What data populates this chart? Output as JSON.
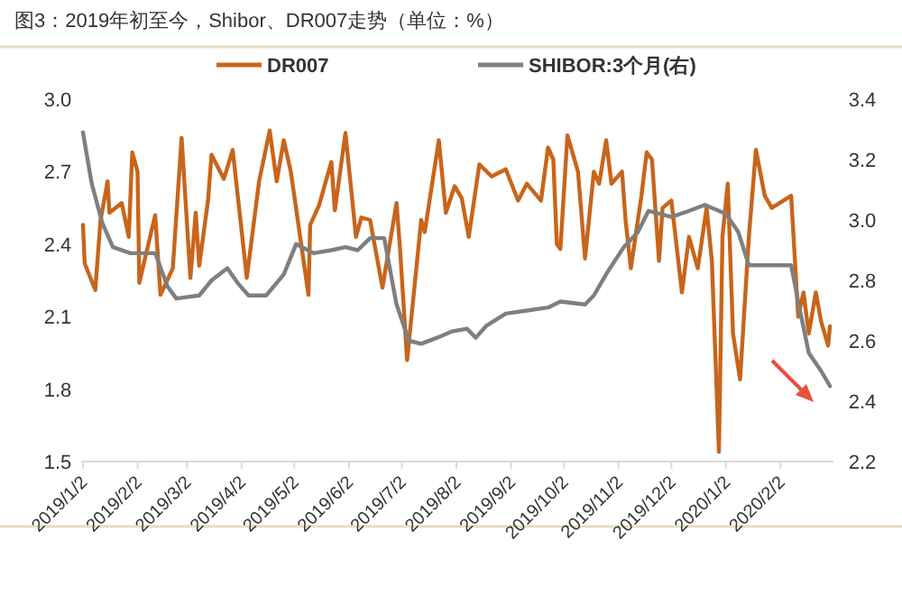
{
  "chart_data": {
    "type": "line",
    "title": "图3：2019年初至今，Shibor、DR007走势（单位：%）",
    "legend": "top",
    "grid": false,
    "line_style": "solid",
    "xlim": [
      "2019-01-01",
      "2020-03-03"
    ],
    "xticks": [
      {
        "value": "2019-01-02",
        "label": "2019/1/2"
      },
      {
        "value": "2019-02-02",
        "label": "2019/2/2"
      },
      {
        "value": "2019-03-02",
        "label": "2019/3/2"
      },
      {
        "value": "2019-04-02",
        "label": "2019/4/2"
      },
      {
        "value": "2019-05-02",
        "label": "2019/5/2"
      },
      {
        "value": "2019-06-02",
        "label": "2019/6/2"
      },
      {
        "value": "2019-07-02",
        "label": "2019/7/2"
      },
      {
        "value": "2019-08-02",
        "label": "2019/8/2"
      },
      {
        "value": "2019-09-02",
        "label": "2019/9/2"
      },
      {
        "value": "2019-10-02",
        "label": "2019/10/2"
      },
      {
        "value": "2019-11-02",
        "label": "2019/11/2"
      },
      {
        "value": "2019-12-02",
        "label": "2019/12/2"
      },
      {
        "value": "2020-01-02",
        "label": "2020/1/2"
      },
      {
        "value": "2020-02-02",
        "label": "2020/2/2"
      }
    ],
    "ylim": [
      1.5,
      3.0
    ],
    "yticks": [
      {
        "value": 1.5,
        "label": "1.5"
      },
      {
        "value": 1.8,
        "label": "1.8"
      },
      {
        "value": 2.1,
        "label": "2.1"
      },
      {
        "value": 2.4,
        "label": "2.4"
      },
      {
        "value": 2.7,
        "label": "2.7"
      },
      {
        "value": 3.0,
        "label": "3.0"
      }
    ],
    "y2lim": [
      2.2,
      3.4
    ],
    "y2ticks": [
      {
        "value": 2.2,
        "label": "2.2"
      },
      {
        "value": 2.4,
        "label": "2.4"
      },
      {
        "value": 2.6,
        "label": "2.6"
      },
      {
        "value": 2.8,
        "label": "2.8"
      },
      {
        "value": 3.0,
        "label": "3.0"
      },
      {
        "value": 3.2,
        "label": "3.2"
      },
      {
        "value": 3.4,
        "label": "3.4"
      }
    ],
    "series": [
      {
        "name": "DR007",
        "color": "#c8651b",
        "x": [
          "2019-01-02",
          "2019-01-03",
          "2019-01-09",
          "2019-01-12",
          "2019-01-16",
          "2019-01-17",
          "2019-01-24",
          "2019-01-28",
          "2019-01-30",
          "2019-02-02",
          "2019-02-03",
          "2019-02-12",
          "2019-02-15",
          "2019-02-22",
          "2019-02-27",
          "2019-03-04",
          "2019-03-07",
          "2019-03-09",
          "2019-03-14",
          "2019-03-16",
          "2019-03-23",
          "2019-03-28",
          "2019-04-05",
          "2019-04-12",
          "2019-04-18",
          "2019-04-22",
          "2019-04-26",
          "2019-04-30",
          "2019-05-10",
          "2019-05-11",
          "2019-05-16",
          "2019-05-23",
          "2019-05-25",
          "2019-05-31",
          "2019-06-06",
          "2019-06-09",
          "2019-06-14",
          "2019-06-21",
          "2019-06-29",
          "2019-07-01",
          "2019-07-05",
          "2019-07-13",
          "2019-07-15",
          "2019-07-23",
          "2019-07-27",
          "2019-08-01",
          "2019-08-05",
          "2019-08-09",
          "2019-08-15",
          "2019-08-22",
          "2019-08-30",
          "2019-09-06",
          "2019-09-11",
          "2019-09-19",
          "2019-09-23",
          "2019-09-26",
          "2019-09-28",
          "2019-09-30",
          "2019-10-04",
          "2019-10-10",
          "2019-10-14",
          "2019-10-19",
          "2019-10-22",
          "2019-10-26",
          "2019-10-29",
          "2019-11-04",
          "2019-11-06",
          "2019-11-09",
          "2019-11-15",
          "2019-11-18",
          "2019-11-21",
          "2019-11-25",
          "2019-11-27",
          "2019-12-02",
          "2019-12-08",
          "2019-12-12",
          "2019-12-17",
          "2019-12-22",
          "2019-12-25",
          "2019-12-29",
          "2019-12-31",
          "2020-01-03",
          "2020-01-06",
          "2020-01-10",
          "2020-01-15",
          "2020-01-19",
          "2020-01-24",
          "2020-01-28",
          "2020-02-08",
          "2020-02-12",
          "2020-02-15",
          "2020-02-18",
          "2020-02-22",
          "2020-02-25",
          "2020-02-29",
          "2020-03-01"
        ],
        "values": [
          2.48,
          2.32,
          2.21,
          2.5,
          2.66,
          2.53,
          2.57,
          2.43,
          2.78,
          2.7,
          2.24,
          2.52,
          2.19,
          2.3,
          2.84,
          2.26,
          2.53,
          2.31,
          2.58,
          2.77,
          2.67,
          2.79,
          2.26,
          2.66,
          2.87,
          2.66,
          2.83,
          2.7,
          2.19,
          2.48,
          2.56,
          2.74,
          2.54,
          2.86,
          2.43,
          2.51,
          2.5,
          2.22,
          2.57,
          2.38,
          1.92,
          2.5,
          2.45,
          2.83,
          2.53,
          2.64,
          2.59,
          2.43,
          2.73,
          2.68,
          2.71,
          2.58,
          2.65,
          2.58,
          2.8,
          2.75,
          2.4,
          2.38,
          2.85,
          2.7,
          2.34,
          2.7,
          2.65,
          2.83,
          2.65,
          2.7,
          2.5,
          2.3,
          2.6,
          2.78,
          2.75,
          2.33,
          2.55,
          2.58,
          2.2,
          2.43,
          2.3,
          2.55,
          2.33,
          1.54,
          2.43,
          2.65,
          2.03,
          1.84,
          2.43,
          2.79,
          2.6,
          2.55,
          2.6,
          2.1,
          2.2,
          2.03,
          2.2,
          2.08,
          1.98,
          2.06
        ]
      },
      {
        "name": "SHIBOR:3个月(右)",
        "color": "#7f7f7f",
        "axis": "y2",
        "x": [
          "2019-01-02",
          "2019-01-07",
          "2019-01-13",
          "2019-01-19",
          "2019-01-29",
          "2019-02-12",
          "2019-02-19",
          "2019-02-24",
          "2019-03-09",
          "2019-03-16",
          "2019-03-25",
          "2019-03-31",
          "2019-04-06",
          "2019-04-16",
          "2019-04-26",
          "2019-05-03",
          "2019-05-13",
          "2019-05-23",
          "2019-05-31",
          "2019-06-07",
          "2019-06-14",
          "2019-06-22",
          "2019-06-29",
          "2019-07-06",
          "2019-07-13",
          "2019-07-22",
          "2019-07-30",
          "2019-08-08",
          "2019-08-13",
          "2019-08-19",
          "2019-08-30",
          "2019-09-11",
          "2019-09-23",
          "2019-09-30",
          "2019-10-14",
          "2019-10-19",
          "2019-10-27",
          "2019-11-05",
          "2019-11-13",
          "2019-11-19",
          "2019-12-02",
          "2019-12-12",
          "2019-12-21",
          "2020-01-02",
          "2020-01-09",
          "2020-01-15",
          "2020-01-25",
          "2020-02-08",
          "2020-02-13",
          "2020-02-18",
          "2020-02-25",
          "2020-03-01"
        ],
        "values": [
          3.29,
          3.12,
          2.99,
          2.91,
          2.89,
          2.89,
          2.78,
          2.74,
          2.75,
          2.8,
          2.84,
          2.79,
          2.75,
          2.75,
          2.82,
          2.92,
          2.89,
          2.9,
          2.91,
          2.9,
          2.94,
          2.94,
          2.72,
          2.6,
          2.59,
          2.61,
          2.63,
          2.64,
          2.61,
          2.65,
          2.69,
          2.7,
          2.71,
          2.73,
          2.72,
          2.75,
          2.83,
          2.91,
          2.96,
          3.03,
          3.01,
          3.03,
          3.05,
          3.02,
          2.96,
          2.85,
          2.85,
          2.85,
          2.7,
          2.56,
          2.5,
          2.45
        ]
      }
    ]
  }
}
